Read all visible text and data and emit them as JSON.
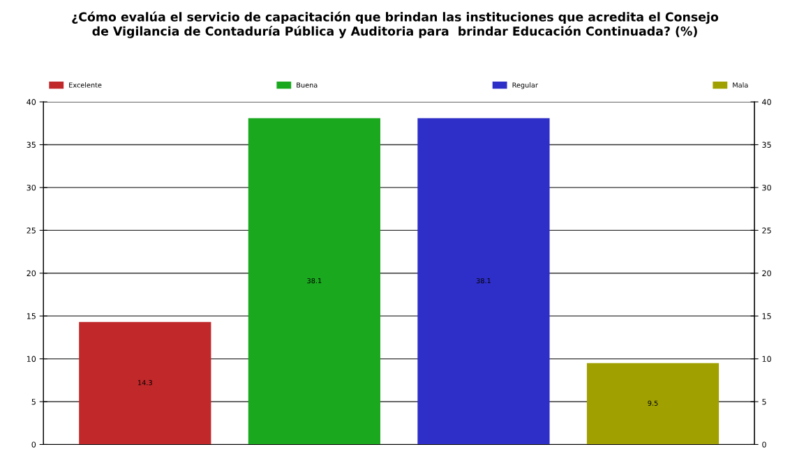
{
  "chart_data": {
    "type": "bar",
    "title": "¿Cómo evalúa el servicio de capacitación que brindan las instituciones que acredita el Consejo\nde Vigilancia de Contaduría Pública y Auditoria para  brindar Educación Continuada? (%)",
    "categories": [
      null,
      null,
      null,
      null
    ],
    "series": [
      {
        "name": "Excelente",
        "color": "#c0282a",
        "values": [
          14.3,
          null,
          null,
          null
        ]
      },
      {
        "name": "Buena",
        "color": "#1aa81e",
        "values": [
          null,
          38.1,
          null,
          null
        ]
      },
      {
        "name": "Regular",
        "color": "#2e2ec8",
        "values": [
          null,
          null,
          38.1,
          null
        ]
      },
      {
        "name": "Mala",
        "color": "#a0a000",
        "values": [
          null,
          null,
          null,
          9.5
        ]
      }
    ],
    "ylim": [
      0,
      40
    ],
    "yticks": [
      0,
      5,
      10,
      15,
      20,
      25,
      30,
      35,
      40
    ],
    "y2lim": [
      0,
      40
    ],
    "y2ticks": [
      0,
      5,
      10,
      15,
      20,
      25,
      30,
      35,
      40
    ],
    "data_labels": true,
    "grid": "y",
    "legend": "top"
  }
}
